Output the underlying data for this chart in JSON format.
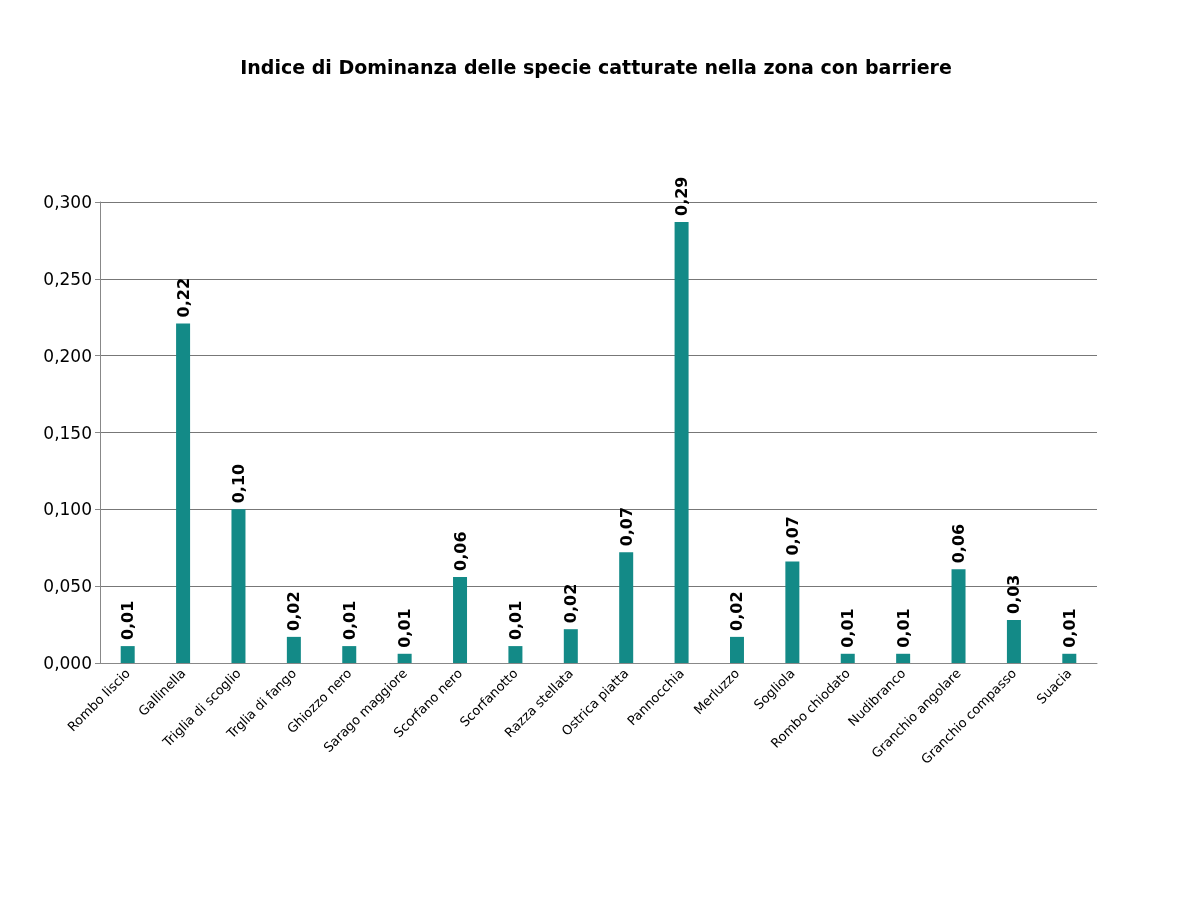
{
  "chart_data": {
    "type": "bar",
    "title": "Indice di Dominanza delle specie catturate nella zona con barriere",
    "categories": [
      "Rombo liscio",
      "Gallinella",
      "Triglia di scoglio",
      "Trglia di fango",
      "Ghiozzo nero",
      "Sarago maggiore",
      "Scorfano nero",
      "Scorfanotto",
      "Razza stellata",
      "Ostrica piatta",
      "Pannocchia",
      "Merluzzo",
      "Sogliola",
      "Rombo chiodato",
      "Nudibranco",
      "Granchio angolare",
      "Granchio compasso",
      "Suacia"
    ],
    "values": [
      0.011,
      0.221,
      0.1,
      0.017,
      0.011,
      0.006,
      0.056,
      0.011,
      0.022,
      0.072,
      0.287,
      0.017,
      0.066,
      0.006,
      0.006,
      0.061,
      0.028,
      0.006
    ],
    "value_labels": [
      "0,01",
      "0,22",
      "0,10",
      "0,02",
      "0,01",
      "0,01",
      "0,06",
      "0,01",
      "0,02",
      "0,07",
      "0,29",
      "0,02",
      "0,07",
      "0,01",
      "0,01",
      "0,06",
      "0,03",
      "0,01"
    ],
    "color": "#138a87",
    "ylim": [
      0,
      0.3
    ],
    "yticks": [
      {
        "value": 0,
        "label": "0,000"
      },
      {
        "value": 0.05,
        "label": "0,050"
      },
      {
        "value": 0.1,
        "label": "0,100"
      },
      {
        "value": 0.15,
        "label": "0,150"
      },
      {
        "value": 0.2,
        "label": "0,200"
      },
      {
        "value": 0.25,
        "label": "0,250"
      },
      {
        "value": 0.3,
        "label": "0,300"
      }
    ],
    "grid": "y"
  }
}
